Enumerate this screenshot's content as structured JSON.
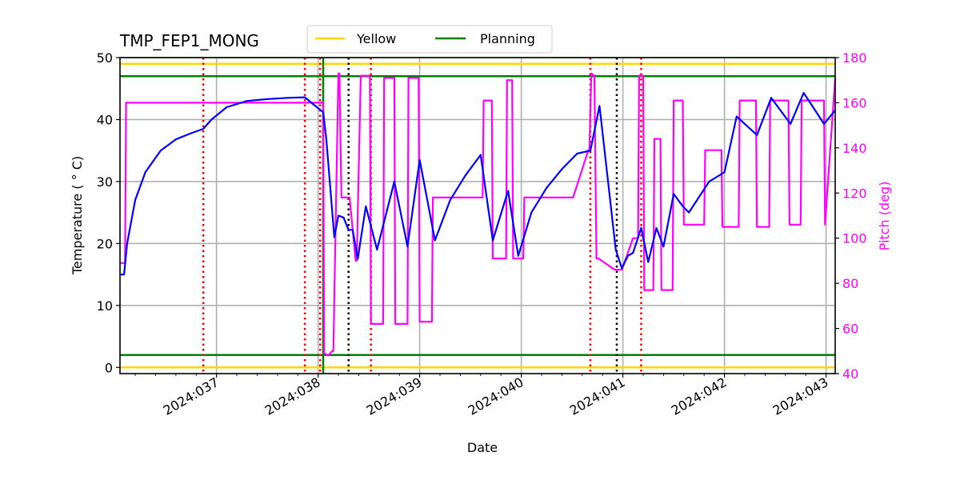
{
  "chart_data": {
    "type": "line",
    "title": "TMP_FEP1_MONG",
    "xlabel": "Date",
    "ylabel": "Temperature ($^\\circ$C)",
    "ylabel_display": "Temperature ( ° C)",
    "y2label": "Pitch (deg)",
    "ylim": [
      -1,
      50
    ],
    "y2lim": [
      40,
      180
    ],
    "xlim_day": [
      36.05,
      43.09
    ],
    "grid": true,
    "legend_position": "top center (above axes)",
    "x_ticks": [
      {
        "day": 37,
        "label": "2024:037"
      },
      {
        "day": 38,
        "label": "2024:038"
      },
      {
        "day": 39,
        "label": "2024:039"
      },
      {
        "day": 40,
        "label": "2024:040"
      },
      {
        "day": 41,
        "label": "2024:041"
      },
      {
        "day": 42,
        "label": "2024:042"
      },
      {
        "day": 43,
        "label": "2024:043"
      }
    ],
    "y_ticks": [
      0,
      10,
      20,
      30,
      40,
      50
    ],
    "y2_ticks": [
      40,
      60,
      80,
      100,
      120,
      140,
      160,
      180
    ],
    "colors": {
      "temperature": "#0000ff",
      "pitch": "#ff00ff",
      "yellow_limit": "#ffd700",
      "planning_limit": "#008000",
      "grid": "#b0b0b0",
      "red_marker": "#ff0000",
      "black_marker": "#000000",
      "green_marker": "#008000"
    },
    "legend": [
      {
        "label": "Yellow",
        "color": "#ffd700"
      },
      {
        "label": "Planning",
        "color": "#008000"
      }
    ],
    "limit_lines": [
      {
        "name": "Yellow",
        "value": 49.0,
        "color": "#ffd700"
      },
      {
        "name": "Yellow",
        "value": 0.0,
        "color": "#ffd700"
      },
      {
        "name": "Planning",
        "value": 47.0,
        "color": "#008000"
      },
      {
        "name": "Planning",
        "value": 2.0,
        "color": "#008000"
      }
    ],
    "vertical_markers": [
      {
        "day": 36.87,
        "style": "dotted",
        "color": "#ff0000"
      },
      {
        "day": 37.87,
        "style": "dotted",
        "color": "#ff0000"
      },
      {
        "day": 38.02,
        "style": "dotted",
        "color": "#ff0000"
      },
      {
        "day": 38.05,
        "style": "solid",
        "color": "#008000"
      },
      {
        "day": 38.3,
        "style": "dotted",
        "color": "#000000"
      },
      {
        "day": 38.52,
        "style": "dotted",
        "color": "#ff0000"
      },
      {
        "day": 40.68,
        "style": "dotted",
        "color": "#ff0000"
      },
      {
        "day": 40.94,
        "style": "dotted",
        "color": "#000000"
      },
      {
        "day": 41.18,
        "style": "dotted",
        "color": "#ff0000"
      }
    ],
    "series": [
      {
        "name": "Temperature",
        "axis": "left",
        "color": "#0000ff",
        "x": [
          36.05,
          36.09,
          36.12,
          36.2,
          36.3,
          36.45,
          36.6,
          36.75,
          36.87,
          36.95,
          37.1,
          37.3,
          37.5,
          37.7,
          37.87,
          37.95,
          38.05,
          38.08,
          38.16,
          38.2,
          38.25,
          38.3,
          38.34,
          38.39,
          38.47,
          38.58,
          38.75,
          38.88,
          39.0,
          39.15,
          39.3,
          39.45,
          39.6,
          39.72,
          39.87,
          39.97,
          40.1,
          40.25,
          40.4,
          40.55,
          40.68,
          40.77,
          40.93,
          40.99,
          41.05,
          41.1,
          41.18,
          41.25,
          41.33,
          41.4,
          41.5,
          41.59,
          41.65,
          41.85,
          42.0,
          42.12,
          42.32,
          42.46,
          42.65,
          42.78,
          42.98,
          43.09
        ],
        "values": [
          15,
          15,
          20,
          27,
          31.5,
          35,
          36.8,
          37.8,
          38.5,
          40,
          42,
          43,
          43.3,
          43.5,
          43.6,
          42.5,
          41.2,
          37,
          21,
          24.5,
          24.2,
          22.2,
          22.2,
          17.5,
          26,
          19,
          30,
          19.5,
          33.5,
          20.5,
          27,
          31,
          34.3,
          20.5,
          28.5,
          18,
          25,
          29,
          32,
          34.5,
          35,
          42.2,
          19,
          16,
          18,
          18.5,
          22.5,
          17,
          22.5,
          19.5,
          28,
          26,
          25,
          30,
          31.5,
          40.5,
          37.5,
          43.5,
          39.3,
          44.3,
          39.3,
          41.5
        ]
      },
      {
        "name": "Pitch",
        "axis": "right",
        "color": "#ff00ff",
        "x": [
          36.05,
          36.1,
          36.11,
          37.96,
          38.05,
          38.06,
          38.1,
          38.14,
          38.15,
          38.2,
          38.21,
          38.23,
          38.24,
          38.3,
          38.31,
          38.37,
          38.38,
          38.42,
          38.43,
          38.51,
          38.52,
          38.64,
          38.65,
          38.75,
          38.76,
          38.88,
          38.89,
          38.99,
          39.0,
          39.12,
          39.13,
          39.23,
          39.24,
          39.62,
          39.63,
          39.71,
          39.72,
          39.85,
          39.86,
          39.91,
          39.92,
          40.02,
          40.03,
          40.5,
          40.51,
          40.66,
          40.67,
          40.69,
          40.72,
          40.74,
          40.76,
          40.92,
          40.93,
          40.98,
          40.99,
          41.1,
          41.11,
          41.15,
          41.16,
          41.2,
          41.21,
          41.3,
          41.31,
          41.37,
          41.38,
          41.49,
          41.5,
          41.59,
          41.6,
          41.8,
          41.81,
          41.97,
          41.98,
          42.14,
          42.15,
          42.31,
          42.32,
          42.44,
          42.45,
          42.63,
          42.64,
          42.75,
          42.76,
          42.98,
          42.99,
          43.09
        ],
        "values": [
          89,
          89,
          160,
          160,
          160,
          49,
          48,
          50,
          50,
          173,
          173,
          118,
          118,
          118,
          118,
          90,
          90,
          172,
          172,
          172,
          62,
          62,
          171,
          171,
          62,
          62,
          171,
          171,
          63,
          63,
          118,
          118,
          118,
          118,
          161,
          161,
          91,
          91,
          170,
          170,
          91,
          91,
          118,
          118,
          118,
          139,
          139,
          173,
          172,
          91,
          91,
          86,
          86,
          86,
          86,
          100,
          100,
          100,
          172,
          172,
          77,
          77,
          144,
          144,
          77,
          77,
          161,
          161,
          106,
          106,
          139,
          139,
          105,
          105,
          161,
          161,
          105,
          105,
          161,
          161,
          106,
          106,
          161,
          161,
          106,
          171
        ]
      }
    ]
  }
}
